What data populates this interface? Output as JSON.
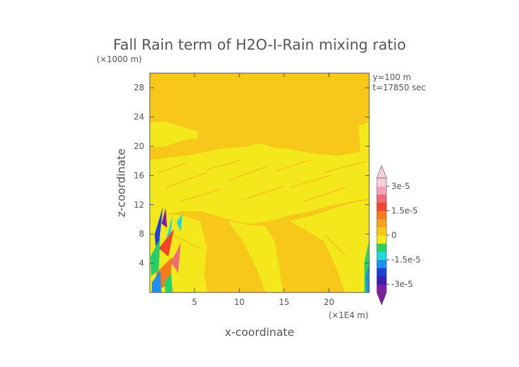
{
  "chart_data": {
    "type": "heatmap",
    "title": "Fall Rain term of H2O-I-Rain mixing ratio",
    "xlabel": "x-coordinate",
    "ylabel": "z-coordinate",
    "x_unit": "(×1E4 m)",
    "y_unit": "(×1000 m)",
    "annotations": [
      "y=100 m",
      "t=17850 sec"
    ],
    "xlim": [
      0,
      24.5
    ],
    "ylim": [
      0,
      30
    ],
    "xticks": [
      5,
      10,
      15,
      20
    ],
    "yticks": [
      4,
      8,
      12,
      16,
      20,
      24,
      28
    ],
    "colorbar": {
      "labels": [
        "3e-5",
        "1.5e-5",
        "0",
        "-1.5e-5",
        "-3e-5"
      ],
      "label_values": [
        3e-05,
        1.5e-05,
        0,
        -1.5e-05,
        -3e-05
      ],
      "range": [
        -3.5e-05,
        3.5e-05
      ],
      "colors": [
        "#7a1fa2",
        "#3b1fb4",
        "#1f3fd4",
        "#1f8ff0",
        "#22d6e0",
        "#26cf6a",
        "#f2ea1c",
        "#f7c81a",
        "#f5a31c",
        "#f57c1c",
        "#f0462a",
        "#f06a78",
        "#f5a3b4",
        "#f7cfd8"
      ]
    },
    "background_value": 0,
    "background_color": "#f7c81a",
    "band_color": "#f2ea1c"
  }
}
